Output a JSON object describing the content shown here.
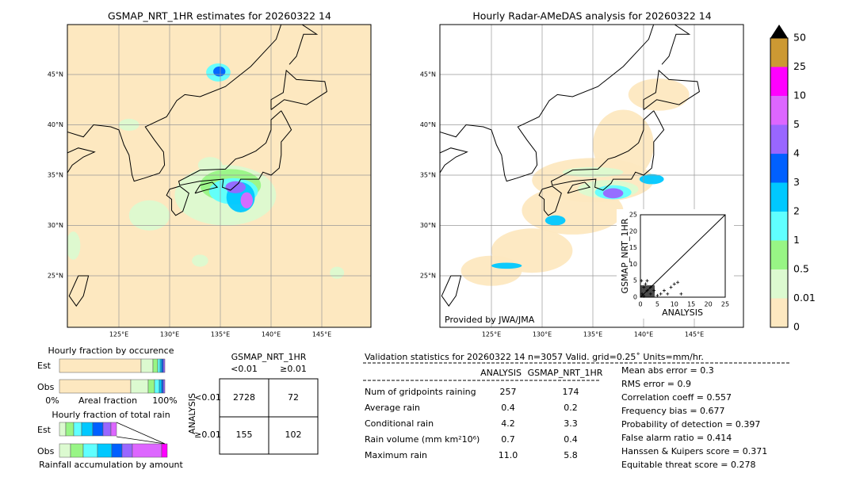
{
  "maps": [
    {
      "title": "GSMAP_NRT_1HR estimates for 20260322 14"
    },
    {
      "title": "Hourly Radar-AMeDAS analysis for 20260322 14",
      "credit": "Provided by JWA/JMA"
    }
  ],
  "lat_labels": [
    "45°N",
    "40°N",
    "35°N",
    "30°N",
    "25°N"
  ],
  "lon_labels": [
    "125°E",
    "130°E",
    "135°E",
    "140°E",
    "145°E"
  ],
  "colorbar": {
    "labels": [
      "0",
      "0.01",
      "0.5",
      "1",
      "2",
      "3",
      "4",
      "5",
      "10",
      "25",
      "50"
    ],
    "colors": [
      "#fde8c0",
      "#dcfad0",
      "#98f585",
      "#60ffff",
      "#00c8ff",
      "#0060ff",
      "#9966ff",
      "#dd66ff",
      "#ff00ff",
      "#cc9933"
    ]
  },
  "scatter": {
    "x_label": "ANALYSIS",
    "y_label": "GSMAP_NRT_1HR",
    "ticks": [
      "0",
      "5",
      "10",
      "15",
      "20",
      "25"
    ]
  },
  "occurrence": {
    "title": "Hourly fraction by occurence",
    "rows": [
      "Est",
      "Obs"
    ],
    "axis_left": "0%",
    "axis_label": "Areal fraction",
    "axis_right": "100%"
  },
  "total_rain": {
    "title": "Hourly fraction of total rain",
    "rows": [
      "Est",
      "Obs"
    ],
    "caption": "Rainfall accumulation by amount"
  },
  "contingency": {
    "header": "GSMAP_NRT_1HR",
    "columns": [
      "<0.01",
      "≥0.01"
    ],
    "row_header": "ANALYSIS",
    "rows": [
      "<0.01",
      "≥0.01"
    ],
    "cells": [
      [
        "2728",
        "72"
      ],
      [
        "155",
        "102"
      ]
    ]
  },
  "validation": {
    "title": "Validation statistics for 20260322 14  n=3057 Valid. grid=0.25˚ Units=mm/hr.",
    "columns": [
      "ANALYSIS",
      "GSMAP_NRT_1HR"
    ],
    "rows": [
      [
        "Num of gridpoints raining",
        "257",
        "174"
      ],
      [
        "Average rain",
        "0.4",
        "0.2"
      ],
      [
        "Conditional rain",
        "4.2",
        "3.3"
      ],
      [
        "Rain volume (mm km²10⁶)",
        "0.7",
        "0.4"
      ],
      [
        "Maximum rain",
        "11.0",
        "5.8"
      ]
    ],
    "scores": [
      "Mean abs error =    0.3",
      "RMS error =    0.9",
      "Correlation coeff =  0.557",
      "Frequency bias =  0.677",
      "Probability of detection =  0.397",
      "False alarm ratio =  0.414",
      "Hanssen & Kuipers score =  0.371",
      "Equitable threat score =  0.278"
    ]
  }
}
